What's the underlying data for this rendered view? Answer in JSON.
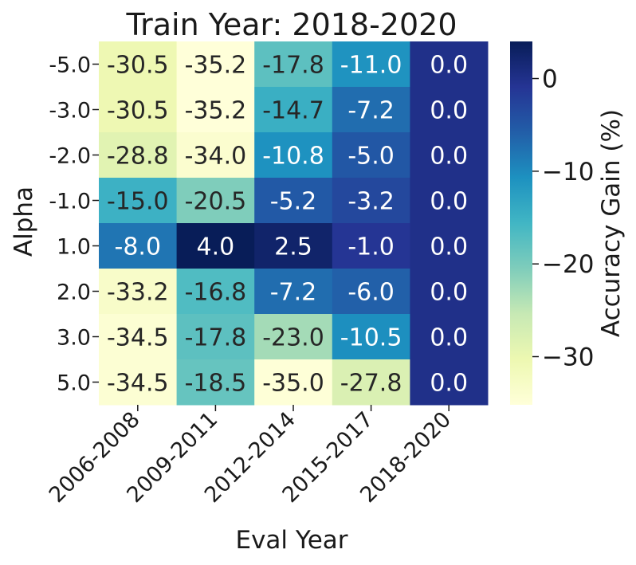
{
  "chart_data": {
    "type": "heatmap",
    "title": "Train Year: 2018-2020",
    "xlabel": "Eval Year",
    "ylabel": "Alpha",
    "x_categories": [
      "2006-2008",
      "2009-2011",
      "2012-2014",
      "2015-2017",
      "2018-2020"
    ],
    "y_categories": [
      "-5.0",
      "-3.0",
      "-2.0",
      "-1.0",
      "1.0",
      "2.0",
      "3.0",
      "5.0"
    ],
    "values": [
      [
        -30.5,
        -35.2,
        -17.8,
        -11.0,
        0.0
      ],
      [
        -30.5,
        -35.2,
        -14.7,
        -7.2,
        0.0
      ],
      [
        -28.8,
        -34.0,
        -10.8,
        -5.0,
        0.0
      ],
      [
        -15.0,
        -20.5,
        -5.2,
        -3.2,
        0.0
      ],
      [
        -8.0,
        4.0,
        2.5,
        -1.0,
        0.0
      ],
      [
        -33.2,
        -16.8,
        -7.2,
        -6.0,
        0.0
      ],
      [
        -34.5,
        -17.8,
        -23.0,
        -10.5,
        0.0
      ],
      [
        -34.5,
        -18.5,
        -35.0,
        -27.8,
        0.0
      ]
    ],
    "colormap": "YlGnBu",
    "colorbar": {
      "label": "Accuracy Gain (%)",
      "range": [
        -35.2,
        4.0
      ],
      "ticks": [
        0,
        -10,
        -20,
        -30
      ],
      "tick_labels": [
        "0",
        "−10",
        "−20",
        "−30"
      ]
    },
    "annotations": "cell values shown with one decimal"
  }
}
